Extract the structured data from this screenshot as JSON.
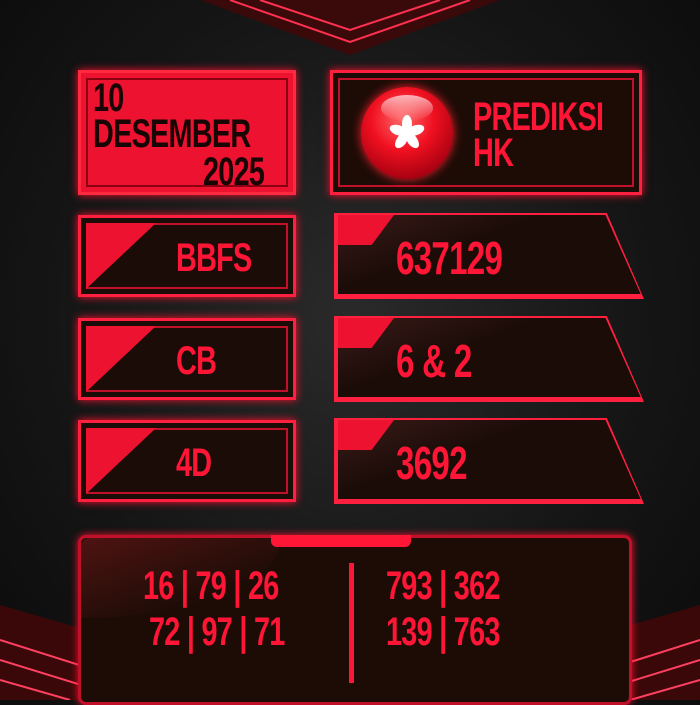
{
  "date": {
    "day": "10",
    "month": "DESEMBER",
    "year": "2025"
  },
  "title": {
    "line1": "PREDIKSI",
    "line2": "HK",
    "emblem_icon": "hong-kong-bauhinia-icon"
  },
  "rows": [
    {
      "label": "BBFS",
      "value": "637129"
    },
    {
      "label": "CB",
      "value": "6 & 2"
    },
    {
      "label": "4D",
      "value": "3692"
    }
  ],
  "bottom": {
    "left": [
      "16 | 79 | 26",
      "72 | 97 | 71"
    ],
    "right": [
      "793 | 362",
      "139 | 763"
    ]
  },
  "colors": {
    "accent": "#ec1230",
    "text": "#ff1535",
    "panel": "#1d0c06"
  }
}
